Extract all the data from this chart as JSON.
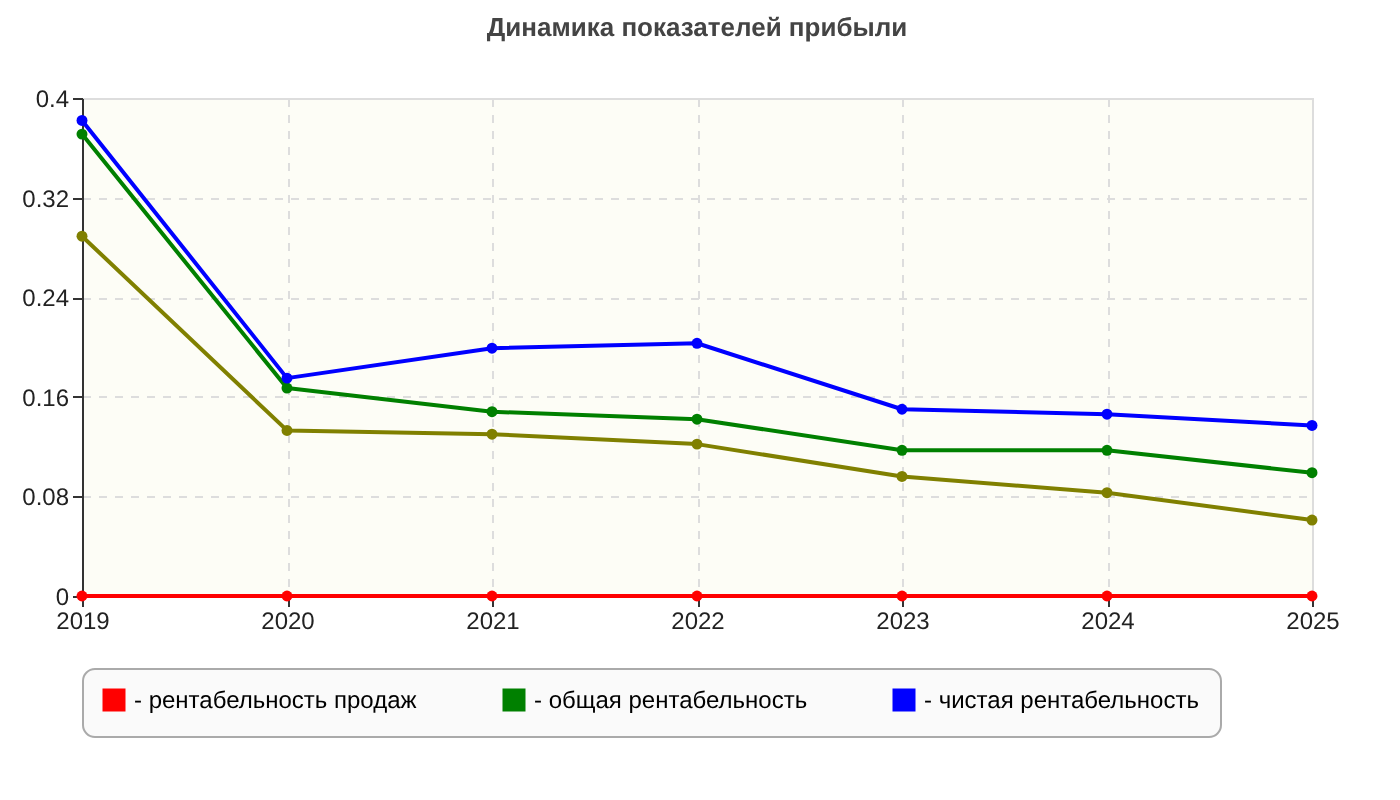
{
  "chart_data": {
    "type": "line",
    "title": "Динамика показателей прибыли",
    "categories": [
      "2019",
      "2020",
      "2021",
      "2022",
      "2023",
      "2024",
      "2025"
    ],
    "series": [
      {
        "name": "- рентабельность продаж",
        "color": "#ff0000",
        "values": [
          0,
          0,
          0,
          0,
          0,
          0,
          0
        ]
      },
      {
        "name": "- общая рентабельность",
        "color": "#008000",
        "values": [
          0.371,
          0.167,
          0.148,
          0.142,
          0.117,
          0.117,
          0.099
        ]
      },
      {
        "name": "- чистая рентабельность",
        "color": "#0000ff",
        "values": [
          0.382,
          0.175,
          0.199,
          0.203,
          0.15,
          0.146,
          0.137
        ]
      },
      {
        "color": "#808000",
        "values": [
          0.289,
          0.133,
          0.13,
          0.122,
          0.096,
          0.083,
          0.061
        ]
      }
    ],
    "ylim": [
      0,
      0.4
    ],
    "yticks": [
      0,
      0.08,
      0.16,
      0.24,
      0.32,
      0.4
    ],
    "grid": true,
    "legend": "bottom",
    "marker": "circle",
    "line_style": "solid"
  }
}
